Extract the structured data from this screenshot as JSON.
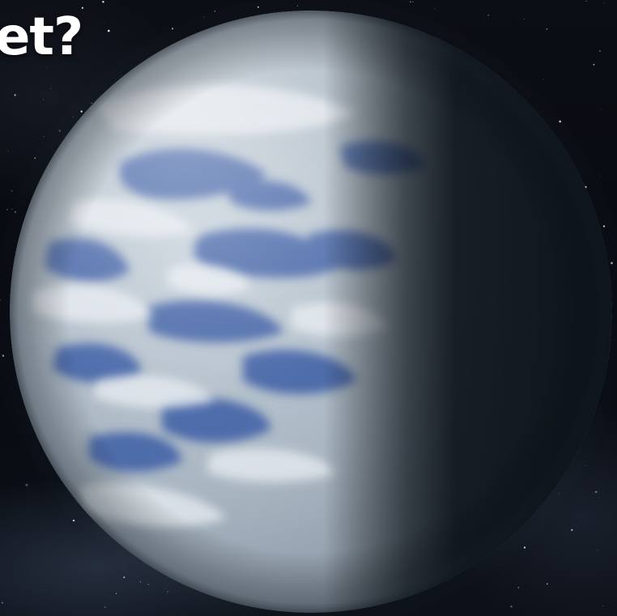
{
  "headline": {
    "text": "et?"
  },
  "scene": {
    "subject": "planet-illustration",
    "colors": {
      "space": "#070a10",
      "ocean": "#3e5fa6",
      "cloud": "#e8edf2",
      "night_side": "#0e141b",
      "headline": "#ffffff"
    }
  }
}
